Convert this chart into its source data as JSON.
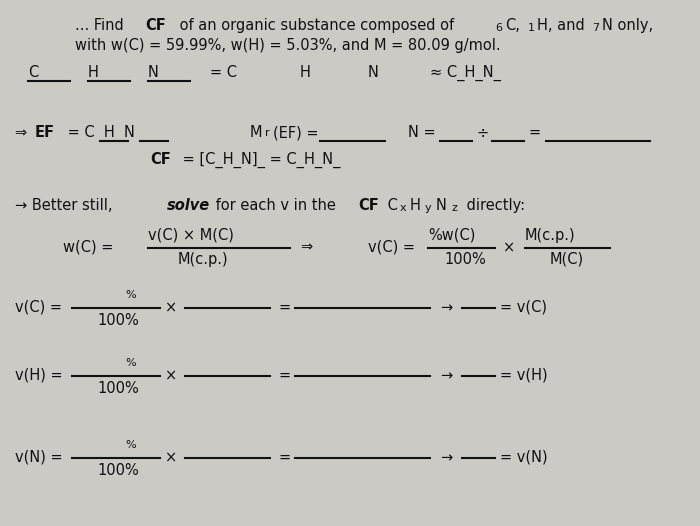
{
  "bg_color": "#cbcac5",
  "text_color": "#111111",
  "fig_width": 7.0,
  "fig_height": 5.26,
  "dpi": 100
}
